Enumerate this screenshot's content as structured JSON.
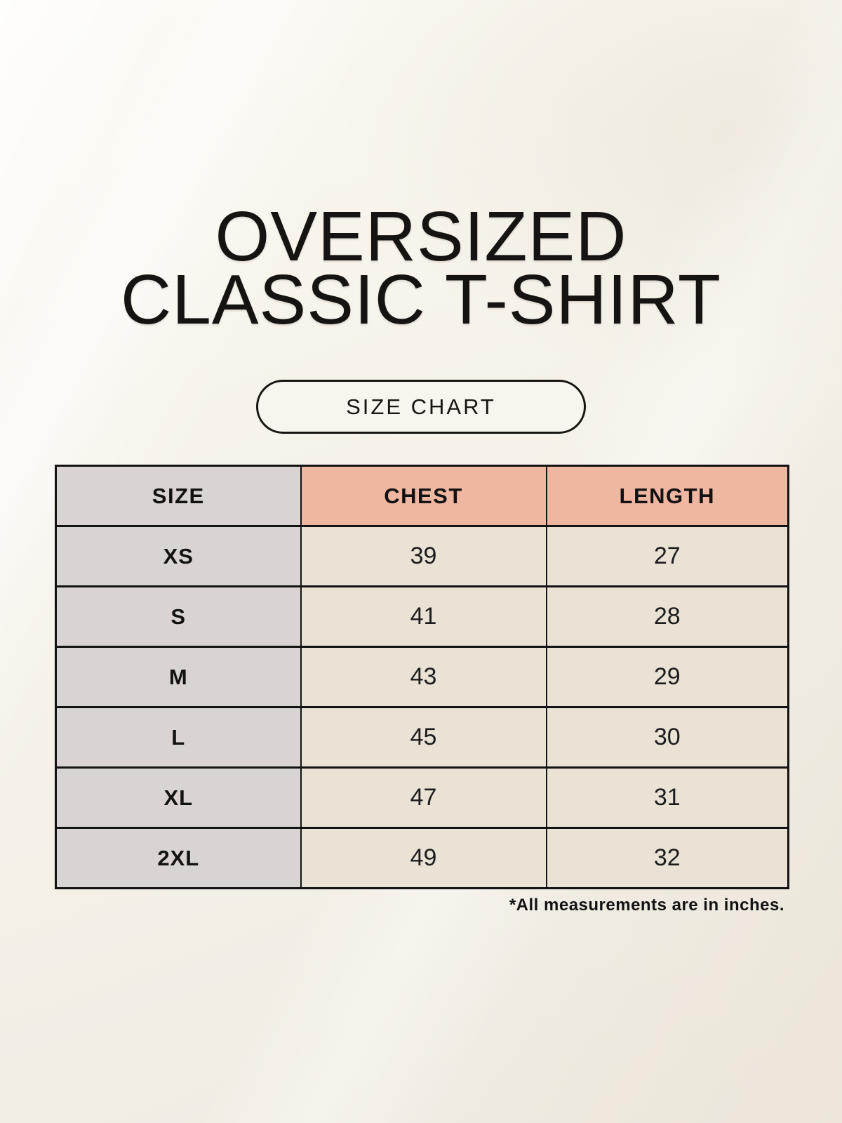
{
  "header": {
    "title_line1": "OVERSIZED",
    "title_line2": "CLASSIC T-SHIRT"
  },
  "size_chart_button": {
    "label": "SIZE CHART"
  },
  "footnote": "*All measurements are in inches.",
  "colors": {
    "background_cream": "#f6f2e9",
    "header_accent_salmon": "#efb6a2",
    "size_column_gray": "#d9d3d1",
    "data_cell_cream": "#e9e2d5",
    "border_and_text": "#131313"
  },
  "chart_data": {
    "type": "table",
    "title": "OVERSIZED CLASSIC T-SHIRT",
    "subtitle": "SIZE CHART",
    "columns": [
      "SIZE",
      "CHEST",
      "LENGTH"
    ],
    "rows": [
      [
        "XS",
        "39",
        "27"
      ],
      [
        "S",
        "41",
        "28"
      ],
      [
        "M",
        "43",
        "29"
      ],
      [
        "L",
        "45",
        "30"
      ],
      [
        "XL",
        "47",
        "31"
      ],
      [
        "2XL",
        "49",
        "32"
      ]
    ],
    "units": "inches",
    "note": "*All measurements are in inches."
  }
}
